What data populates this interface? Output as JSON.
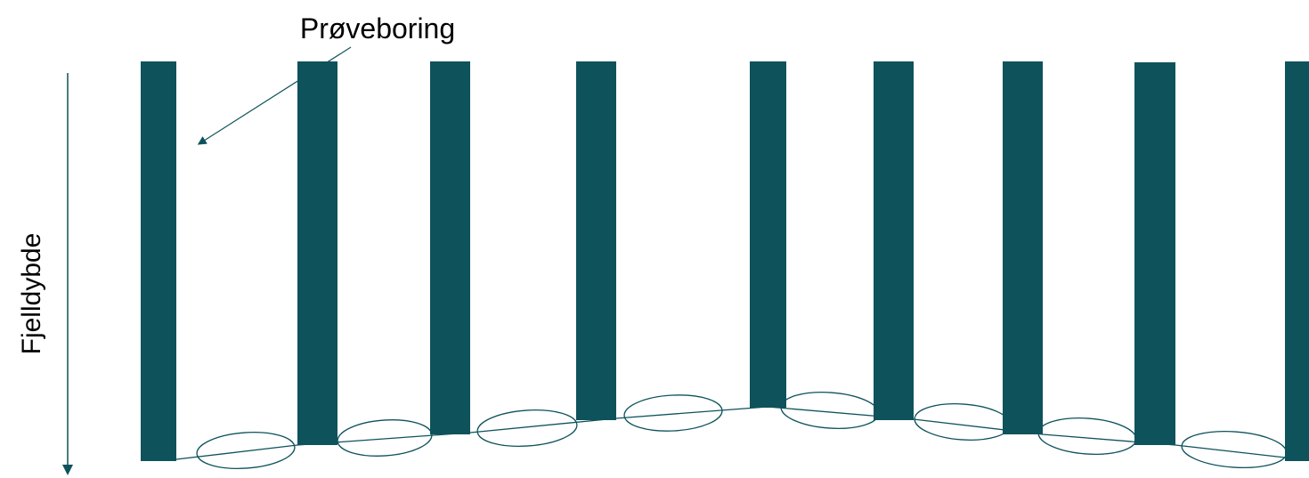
{
  "annotation_label": "Prøveboring",
  "axis_label": "Fjelldybde",
  "colors": {
    "borehole": "#0e525c",
    "outline": "#0e525c",
    "text": "#000000",
    "background": "#ffffff"
  },
  "icons": [
    "down-arrow-icon",
    "pointer-arrow-icon"
  ],
  "chart_data": {
    "type": "diagram",
    "boreholes_count": 9
  }
}
